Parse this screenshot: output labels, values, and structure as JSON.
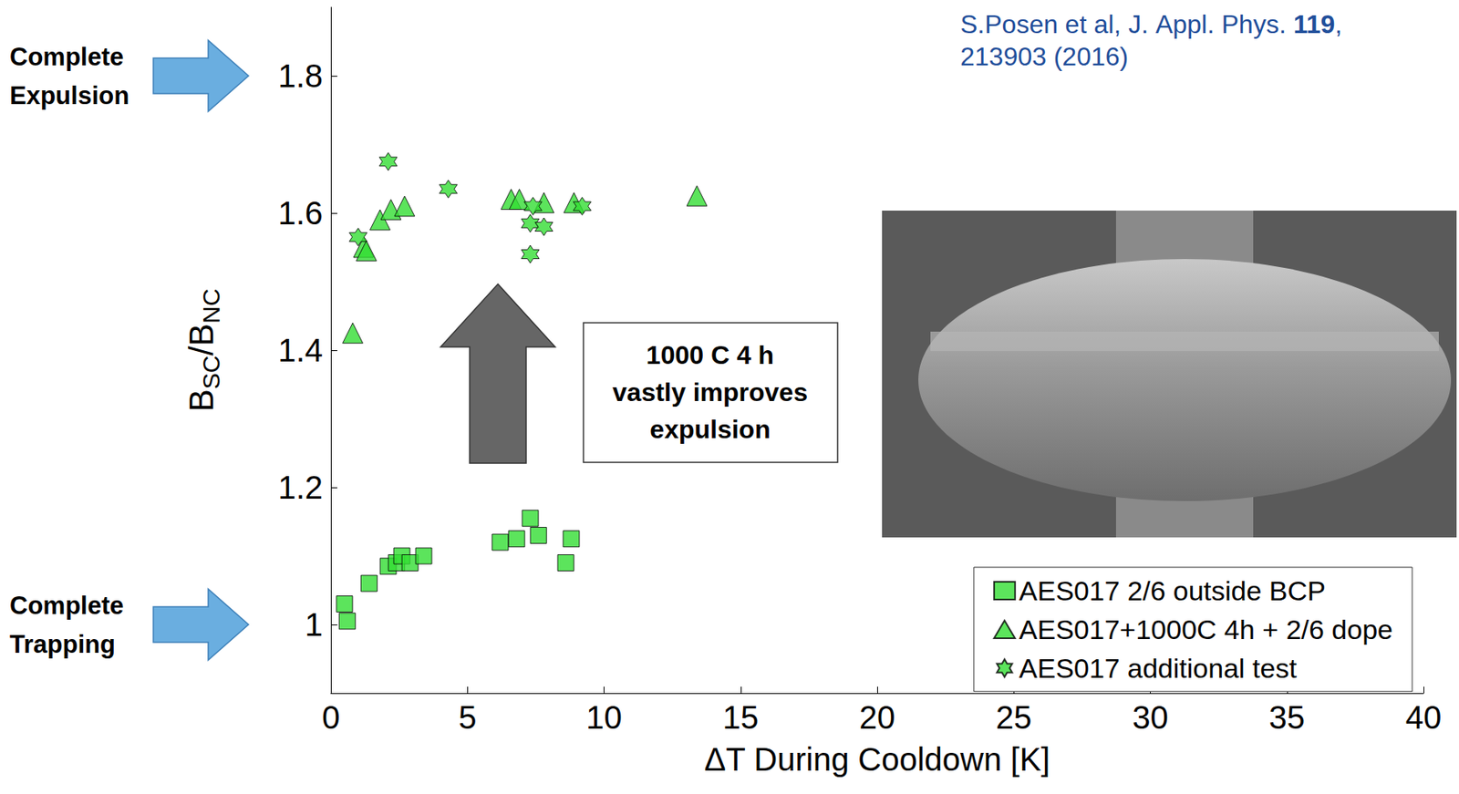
{
  "chart_data": {
    "type": "scatter",
    "xlabel": "ΔT During Cooldown [K]",
    "ylabel": [
      {
        "text": "B"
      },
      {
        "text": "SC",
        "subscript": true
      },
      {
        "text": "/B"
      },
      {
        "text": "NC",
        "subscript": true
      }
    ],
    "xlim": [
      0,
      40
    ],
    "xticks": [
      0,
      5,
      10,
      15,
      20,
      25,
      30,
      35,
      40
    ],
    "ylim": [
      0.9,
      1.9
    ],
    "yticks": [
      1,
      1.2,
      1.4,
      1.6,
      1.8
    ],
    "grid": false,
    "legend": "bottom-right",
    "series": [
      {
        "name": "AES017 2/6 outside BCP",
        "color": "#33dd33",
        "marker": "square",
        "x": [
          0.5,
          0.6,
          1.4,
          2.1,
          2.4,
          2.6,
          2.9,
          3.4,
          6.2,
          6.8,
          7.3,
          7.6,
          8.6,
          8.8
        ],
        "values": [
          1.03,
          1.005,
          1.06,
          1.085,
          1.09,
          1.1,
          1.09,
          1.1,
          1.12,
          1.125,
          1.155,
          1.13,
          1.09,
          1.125
        ]
      },
      {
        "name": "AES017+1000C 4h + 2/6 dope",
        "color": "#33dd33",
        "marker": "triangle",
        "x": [
          0.8,
          1.2,
          1.3,
          1.8,
          2.2,
          2.7,
          6.6,
          6.9,
          7.8,
          8.9,
          13.4
        ],
        "values": [
          1.425,
          1.55,
          1.545,
          1.59,
          1.605,
          1.61,
          1.62,
          1.62,
          1.615,
          1.615,
          1.625
        ]
      },
      {
        "name": "AES017 additional test",
        "color": "#33dd33",
        "marker": "hexagram",
        "x": [
          1.0,
          2.1,
          4.3,
          7.3,
          7.3,
          7.4,
          7.8,
          9.2
        ],
        "values": [
          1.565,
          1.675,
          1.635,
          1.585,
          1.54,
          1.61,
          1.58,
          1.61
        ]
      }
    ],
    "annotations": [
      {
        "text": "Complete Expulsion",
        "y": 1.8
      },
      {
        "text": "Complete Trapping",
        "y": 1
      }
    ],
    "callout": "1000 C 4 h vastly improves expulsion",
    "citation": "S.Posen et al, J. Appl. Phys. 119, 213903 (2016)",
    "citation_bold": "119"
  }
}
